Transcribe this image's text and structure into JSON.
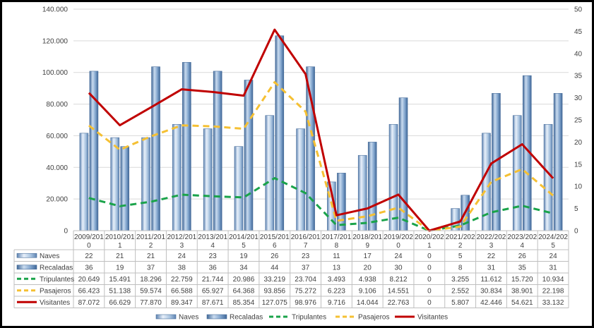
{
  "chart_data": {
    "type": "bar",
    "categories": [
      "2009/2010",
      "2010/2011",
      "2011/2012",
      "2012/2013",
      "2013/2014",
      "2014/2015",
      "2015/2016",
      "2016/2017",
      "2017/2018",
      "2018/2019",
      "2019/2020",
      "2020/2021",
      "2021/2022",
      "2022/2023",
      "2023/2024",
      "2024/2025"
    ],
    "category_lines": [
      [
        "2009/201",
        "0"
      ],
      [
        "2010/201",
        "1"
      ],
      [
        "2011/201",
        "2"
      ],
      [
        "2012/201",
        "3"
      ],
      [
        "2013/201",
        "4"
      ],
      [
        "2014/201",
        "5"
      ],
      [
        "2015/201",
        "6"
      ],
      [
        "2016/201",
        "7"
      ],
      [
        "2017/201",
        "8"
      ],
      [
        "2018/201",
        "9"
      ],
      [
        "2019/202",
        "0"
      ],
      [
        "2020/202",
        "1"
      ],
      [
        "2021/202",
        "2"
      ],
      [
        "2022/202",
        "3"
      ],
      [
        "2023/202",
        "4"
      ],
      [
        "2024/202",
        "5"
      ]
    ],
    "left_axis": {
      "ylim": [
        0,
        140000
      ],
      "ticks": [
        "0",
        "20.000",
        "40.000",
        "60.000",
        "80.000",
        "100.000",
        "120.000",
        "140.000"
      ]
    },
    "right_axis": {
      "ylim": [
        0,
        50
      ],
      "ticks": [
        "0",
        "5",
        "10",
        "15",
        "20",
        "25",
        "30",
        "35",
        "40",
        "45",
        "50"
      ]
    },
    "grid": true,
    "legend_position": "bottom",
    "series": [
      {
        "name": "Naves",
        "type": "bar",
        "axis": "right",
        "color": "#a9c4e0",
        "values": [
          22,
          21,
          21,
          24,
          23,
          19,
          26,
          23,
          11,
          17,
          24,
          0,
          5,
          22,
          26,
          24
        ],
        "labels": [
          "22",
          "21",
          "21",
          "24",
          "23",
          "19",
          "26",
          "23",
          "11",
          "17",
          "24",
          "0",
          "5",
          "22",
          "26",
          "24"
        ]
      },
      {
        "name": "Recaladas",
        "type": "bar",
        "axis": "right",
        "color": "#7fa3cc",
        "values": [
          36,
          19,
          37,
          38,
          36,
          34,
          44,
          37,
          13,
          20,
          30,
          0,
          8,
          31,
          35,
          31
        ],
        "labels": [
          "36",
          "19",
          "37",
          "38",
          "36",
          "34",
          "44",
          "37",
          "13",
          "20",
          "30",
          "0",
          "8",
          "31",
          "35",
          "31"
        ]
      },
      {
        "name": "Tripulantes",
        "type": "line",
        "style": "dashed",
        "axis": "left",
        "color": "#1aa34a",
        "values": [
          20649,
          15491,
          18296,
          22759,
          21744,
          20986,
          33219,
          23704,
          3493,
          4938,
          8212,
          0,
          3255,
          11612,
          15720,
          10934
        ],
        "labels": [
          "20.649",
          "15.491",
          "18.296",
          "22.759",
          "21.744",
          "20.986",
          "33.219",
          "23.704",
          "3.493",
          "4.938",
          "8.212",
          "0",
          "3.255",
          "11.612",
          "15.720",
          "10.934"
        ]
      },
      {
        "name": "Pasajeros",
        "type": "line",
        "style": "dashed",
        "axis": "left",
        "color": "#f5c033",
        "values": [
          66423,
          51138,
          59574,
          66588,
          65927,
          64368,
          93856,
          75272,
          6223,
          9106,
          14551,
          0,
          2552,
          30834,
          38901,
          22198
        ],
        "labels": [
          "66.423",
          "51.138",
          "59.574",
          "66.588",
          "65.927",
          "64.368",
          "93.856",
          "75.272",
          "6.223",
          "9.106",
          "14.551",
          "0",
          "2.552",
          "30.834",
          "38.901",
          "22.198"
        ]
      },
      {
        "name": "Visitantes",
        "type": "line",
        "style": "solid",
        "axis": "left",
        "color": "#c00000",
        "values": [
          87072,
          66629,
          77870,
          89347,
          87671,
          85354,
          127075,
          98976,
          9716,
          14044,
          22763,
          0,
          5807,
          42446,
          54621,
          33132
        ],
        "labels": [
          "87.072",
          "66.629",
          "77.870",
          "89.347",
          "87.671",
          "85.354",
          "127.075",
          "98.976",
          "9.716",
          "14.044",
          "22.763",
          "0",
          "5.807",
          "42.446",
          "54.621",
          "33.132"
        ]
      }
    ]
  }
}
